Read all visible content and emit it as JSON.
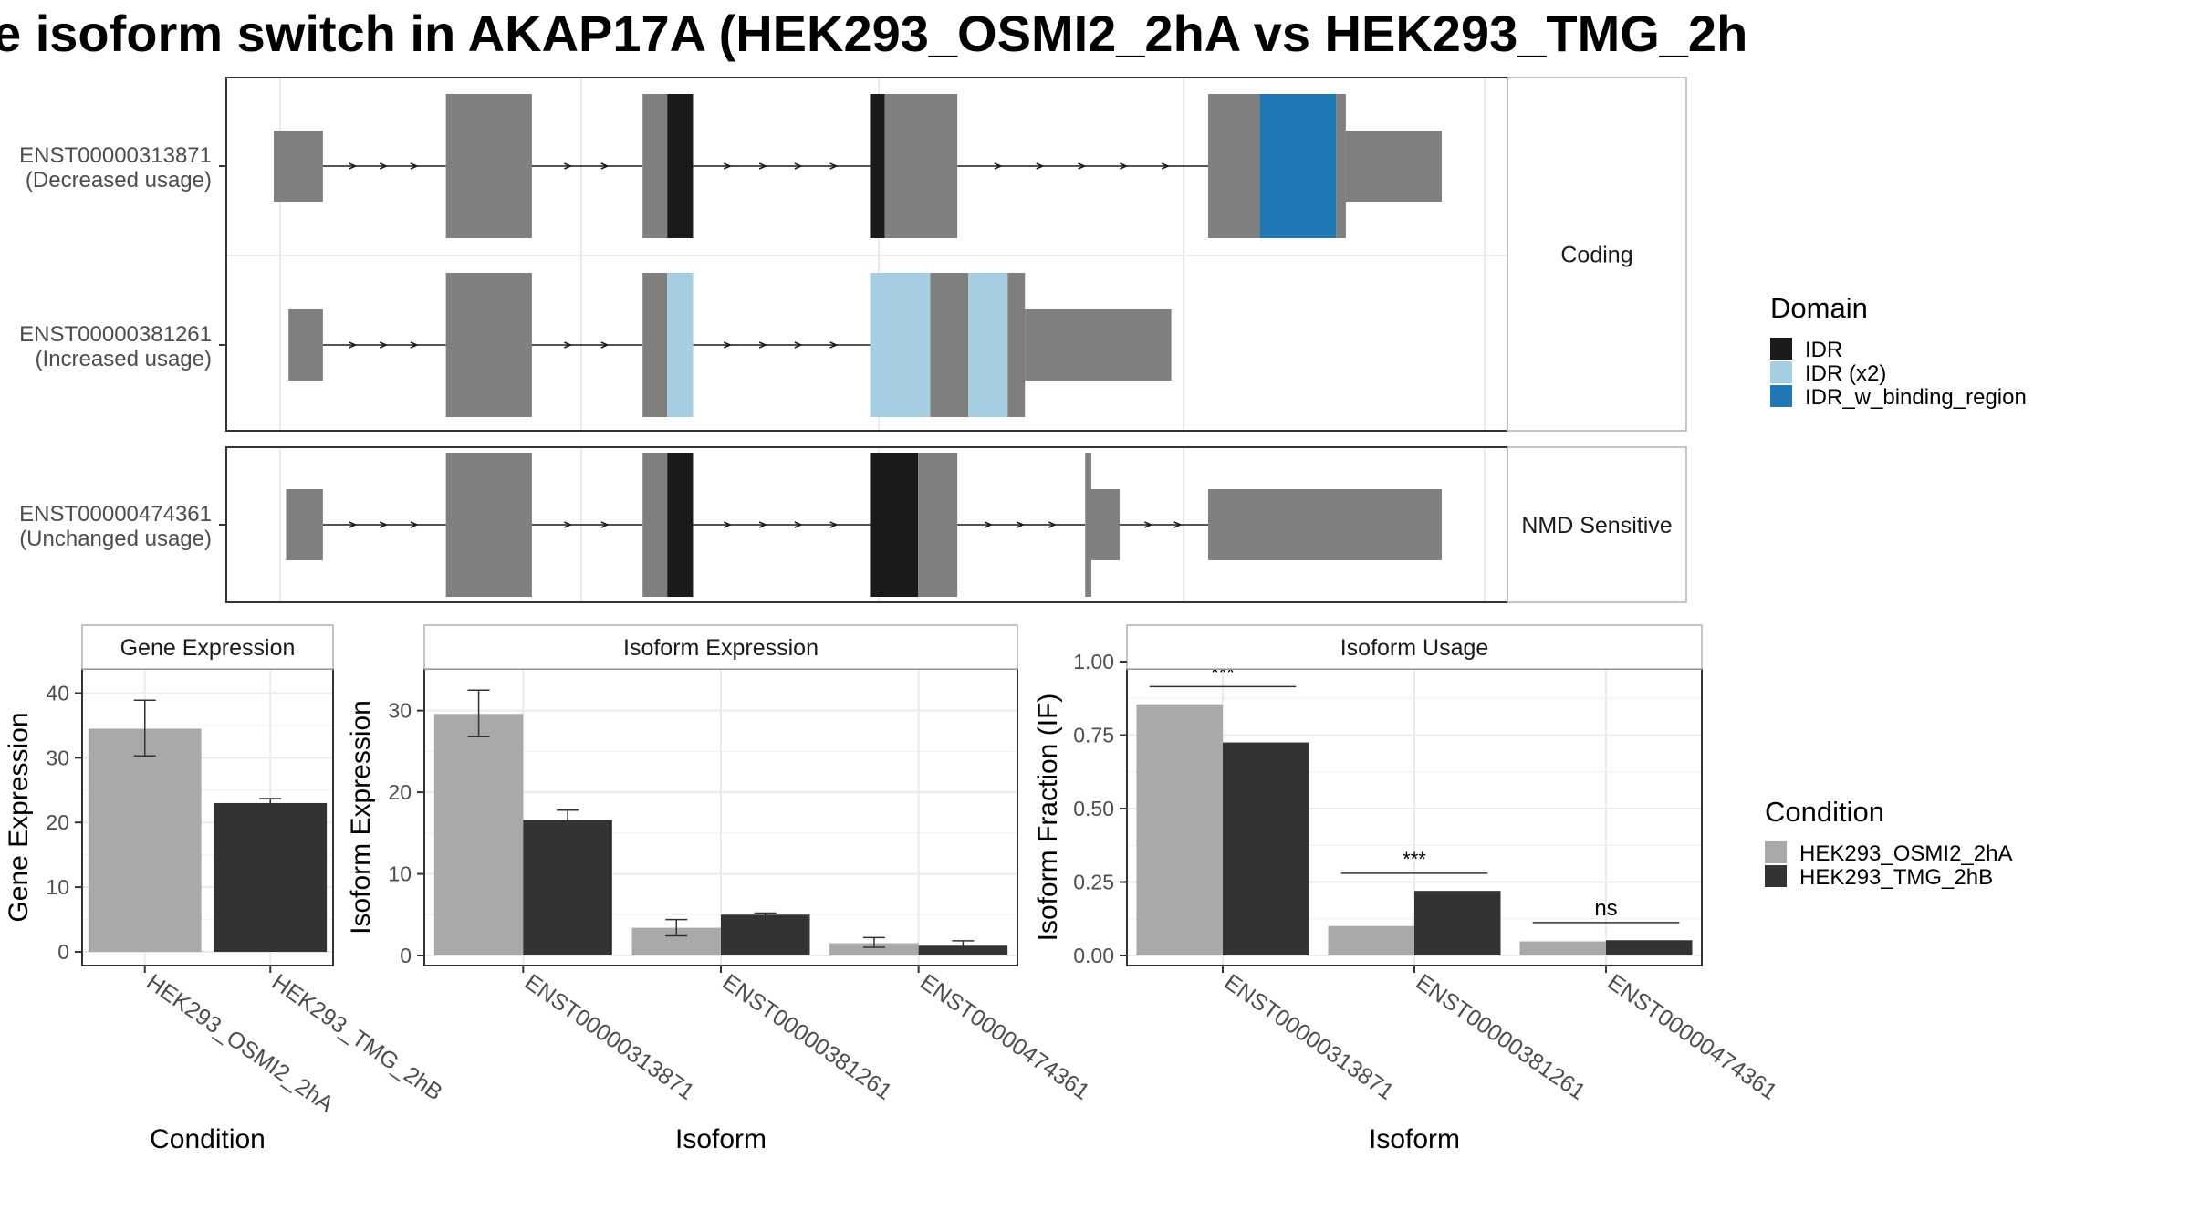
{
  "title": "e isoform switch in AKAP17A (HEK293_OSMI2_2hA vs HEK293_TMG_2h",
  "colors": {
    "exon": "#7f7f7f",
    "IDR": "#1a1a1a",
    "IDR (x2)": "#a6cee3",
    "IDR_w_binding_region": "#1f78b4",
    "cond1": "#a9a9a9",
    "cond2": "#333333",
    "panel_border": "#333333",
    "strip_border": "#b3b3b3",
    "grid": "#ebebeb"
  },
  "structure": {
    "groups": [
      {
        "facet_label": "Coding",
        "isoforms": [
          {
            "id": "ENST00000313871",
            "usage": "(Decreased usage)",
            "segments": [
              {
                "s": 0.0,
                "e": 4.0,
                "h": "small",
                "f": "exon"
              },
              {
                "s": 14.0,
                "e": 21.0,
                "h": "big",
                "f": "exon"
              },
              {
                "s": 30.0,
                "e": 32.0,
                "h": "big",
                "f": "exon"
              },
              {
                "s": 32.0,
                "e": 34.1,
                "h": "big",
                "f": "IDR"
              },
              {
                "s": 48.5,
                "e": 49.7,
                "h": "big",
                "f": "IDR"
              },
              {
                "s": 49.7,
                "e": 55.6,
                "h": "big",
                "f": "exon"
              },
              {
                "s": 76.0,
                "e": 80.2,
                "h": "big",
                "f": "exon"
              },
              {
                "s": 80.2,
                "e": 86.4,
                "h": "big",
                "f": "IDR_w_binding_region"
              },
              {
                "s": 86.4,
                "e": 87.2,
                "h": "big",
                "f": "exon"
              },
              {
                "s": 87.2,
                "e": 95.0,
                "h": "small",
                "f": "exon"
              }
            ],
            "introns": [
              [
                4.0,
                14.0
              ],
              [
                21.0,
                30.0
              ],
              [
                34.1,
                48.5
              ],
              [
                55.6,
                76.0
              ]
            ]
          },
          {
            "id": "ENST00000381261",
            "usage": "(Increased usage)",
            "segments": [
              {
                "s": 1.2,
                "e": 4.0,
                "h": "small",
                "f": "exon"
              },
              {
                "s": 14.0,
                "e": 21.0,
                "h": "big",
                "f": "exon"
              },
              {
                "s": 30.0,
                "e": 32.0,
                "h": "big",
                "f": "exon"
              },
              {
                "s": 32.0,
                "e": 34.1,
                "h": "big",
                "f": "IDR (x2)"
              },
              {
                "s": 48.5,
                "e": 53.4,
                "h": "big",
                "f": "IDR (x2)"
              },
              {
                "s": 53.4,
                "e": 56.5,
                "h": "big",
                "f": "exon"
              },
              {
                "s": 56.5,
                "e": 59.7,
                "h": "big",
                "f": "IDR (x2)"
              },
              {
                "s": 59.7,
                "e": 61.1,
                "h": "big",
                "f": "exon"
              },
              {
                "s": 61.1,
                "e": 73.0,
                "h": "small",
                "f": "exon"
              }
            ],
            "introns": [
              [
                4.0,
                14.0
              ],
              [
                21.0,
                30.0
              ],
              [
                34.1,
                48.5
              ]
            ]
          }
        ]
      },
      {
        "facet_label": "NMD Sensitive",
        "isoforms": [
          {
            "id": "ENST00000474361",
            "usage": "(Unchanged usage)",
            "segments": [
              {
                "s": 1.0,
                "e": 4.0,
                "h": "small",
                "f": "exon"
              },
              {
                "s": 14.0,
                "e": 21.0,
                "h": "big",
                "f": "exon"
              },
              {
                "s": 30.0,
                "e": 32.0,
                "h": "big",
                "f": "exon"
              },
              {
                "s": 32.0,
                "e": 34.1,
                "h": "big",
                "f": "IDR"
              },
              {
                "s": 48.5,
                "e": 52.4,
                "h": "big",
                "f": "IDR"
              },
              {
                "s": 52.4,
                "e": 55.6,
                "h": "big",
                "f": "exon"
              },
              {
                "s": 66.0,
                "e": 66.5,
                "h": "big",
                "f": "exon"
              },
              {
                "s": 66.5,
                "e": 68.8,
                "h": "small",
                "f": "exon"
              },
              {
                "s": 76.0,
                "e": 95.0,
                "h": "small",
                "f": "exon"
              }
            ],
            "introns": [
              [
                4.0,
                14.0
              ],
              [
                21.0,
                30.0
              ],
              [
                34.1,
                48.5
              ],
              [
                55.6,
                66.0
              ],
              [
                68.8,
                76.0
              ]
            ]
          }
        ]
      }
    ]
  },
  "legend_domain": {
    "title": "Domain",
    "items": [
      {
        "label": "IDR",
        "color": "#1a1a1a"
      },
      {
        "label": "IDR (x2)",
        "color": "#a6cee3"
      },
      {
        "label": "IDR_w_binding_region",
        "color": "#1f78b4"
      }
    ]
  },
  "legend_condition": {
    "title": "Condition",
    "items": [
      {
        "label": "HEK293_OSMI2_2hA",
        "color": "#a9a9a9"
      },
      {
        "label": "HEK293_TMG_2hB",
        "color": "#333333"
      }
    ]
  },
  "chart_data": [
    {
      "type": "bar",
      "title": "Gene Expression",
      "xlabel": "Condition",
      "ylabel": "Gene Expression",
      "categories": [
        "HEK293_OSMI2_2hA",
        "HEK293_TMG_2hB"
      ],
      "values": [
        34.5,
        23.0
      ],
      "errors": [
        [
          30.3,
          38.9
        ],
        [
          22.3,
          23.7
        ]
      ],
      "ylim": [
        0,
        45
      ],
      "yticks": [
        0,
        10,
        20,
        30,
        40
      ]
    },
    {
      "type": "bar",
      "title": "Isoform Expression",
      "xlabel": "Isoform",
      "ylabel": "Isoform Expression",
      "categories": [
        "ENST00000313871",
        "ENST00000381261",
        "ENST00000474361"
      ],
      "series": [
        {
          "name": "HEK293_OSMI2_2hA",
          "values": [
            29.6,
            3.4,
            1.5
          ],
          "errors": [
            [
              26.8,
              32.5
            ],
            [
              2.4,
              4.4
            ],
            [
              1.0,
              2.2
            ]
          ]
        },
        {
          "name": "HEK293_TMG_2hB",
          "values": [
            16.6,
            5.0,
            1.2
          ],
          "errors": [
            [
              15.5,
              17.8
            ],
            [
              4.8,
              5.2
            ],
            [
              0.7,
              1.8
            ]
          ]
        }
      ],
      "ylim": [
        0,
        36
      ],
      "yticks": [
        0,
        10,
        20,
        30
      ]
    },
    {
      "type": "bar",
      "title": "Isoform Usage",
      "xlabel": "Isoform",
      "ylabel": "Isoform Fraction (IF)",
      "categories": [
        "ENST00000313871",
        "ENST00000381261",
        "ENST00000474361"
      ],
      "series": [
        {
          "name": "HEK293_OSMI2_2hA",
          "values": [
            0.855,
            0.1,
            0.048
          ]
        },
        {
          "name": "HEK293_TMG_2hB",
          "values": [
            0.725,
            0.22,
            0.052
          ]
        }
      ],
      "significance": [
        "***",
        "***",
        "ns"
      ],
      "ylim": [
        0,
        1.0
      ],
      "yticks": [
        "0.00",
        "0.25",
        "0.50",
        "0.75",
        "1.00"
      ]
    }
  ]
}
